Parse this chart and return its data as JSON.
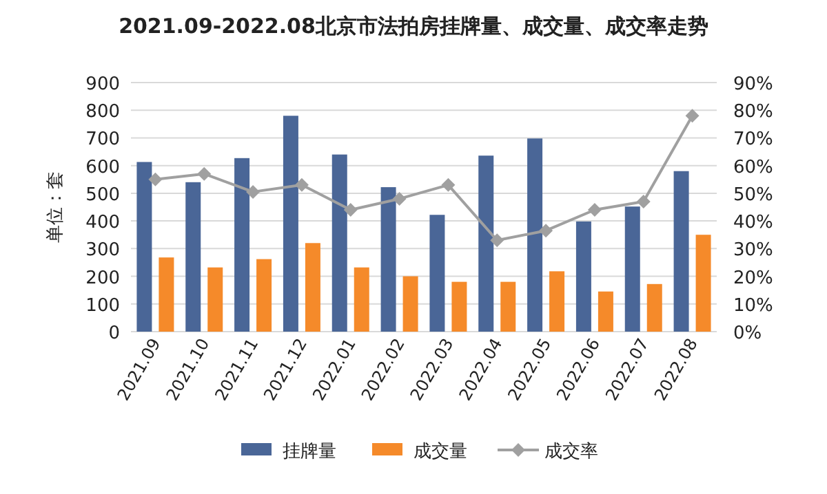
{
  "chart_data": {
    "type": "bar",
    "title": "2021.09-2022.08北京市法拍房挂牌量、成交量、成交率走势",
    "ylabel": "单位：套",
    "categories": [
      "2021.09",
      "2021.10",
      "2021.11",
      "2021.12",
      "2022.01",
      "2022.02",
      "2022.03",
      "2022.04",
      "2022.05",
      "2022.06",
      "2022.07",
      "2022.08"
    ],
    "series": [
      {
        "name": "挂牌量",
        "color": "#4a6697",
        "values": [
          613,
          540,
          627,
          780,
          640,
          522,
          422,
          636,
          698,
          398,
          452,
          580
        ]
      },
      {
        "name": "成交量",
        "color": "#f58a2a",
        "values": [
          268,
          232,
          262,
          320,
          232,
          200,
          180,
          180,
          218,
          145,
          172,
          350
        ]
      },
      {
        "name": "成交率",
        "type": "line",
        "axis": "y2",
        "marker": "diamond",
        "color": "#a0a0a0",
        "values": [
          55,
          57,
          50.5,
          53,
          44,
          48,
          53,
          33,
          36.5,
          44,
          47,
          78
        ]
      }
    ],
    "ylim": [
      0,
      900
    ],
    "yticks": [
      0,
      100,
      200,
      300,
      400,
      500,
      600,
      700,
      800,
      900
    ],
    "y2lim": [
      0,
      90
    ],
    "y2ticks": [
      {
        "value": 0,
        "label": "0%"
      },
      {
        "value": 10,
        "label": "10%"
      },
      {
        "value": 20,
        "label": "20%"
      },
      {
        "value": 30,
        "label": "30%"
      },
      {
        "value": 40,
        "label": "40%"
      },
      {
        "value": 50,
        "label": "50%"
      },
      {
        "value": 60,
        "label": "60%"
      },
      {
        "value": 70,
        "label": "70%"
      },
      {
        "value": 80,
        "label": "80%"
      },
      {
        "value": 90,
        "label": "90%"
      }
    ],
    "grid": "y",
    "legend": "bottom"
  }
}
